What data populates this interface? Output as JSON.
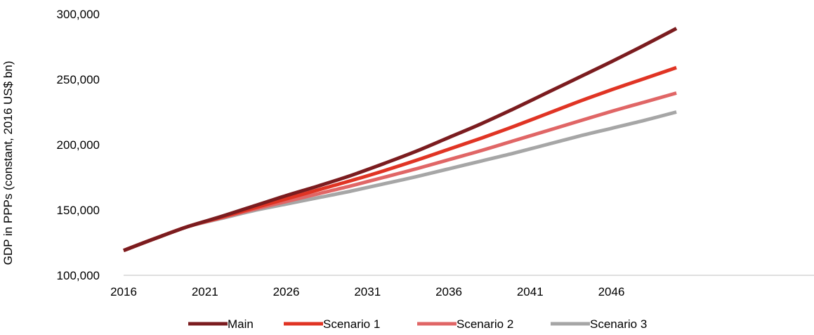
{
  "chart_data": {
    "type": "line",
    "title": "",
    "xlabel": "",
    "ylabel": "GDP in PPPs (constant, 2016 US$ bn)",
    "x_ticks": [
      "2016",
      "2021",
      "2026",
      "2031",
      "2036",
      "2041",
      "2046"
    ],
    "y_ticks": [
      "100,000",
      "150,000",
      "200,000",
      "250,000",
      "300,000"
    ],
    "xlim": [
      2016,
      2050
    ],
    "ylim": [
      100000,
      300000
    ],
    "grid": false,
    "legend_position": "bottom",
    "x": [
      2016,
      2018,
      2020,
      2022,
      2024,
      2026,
      2028,
      2030,
      2032,
      2034,
      2036,
      2038,
      2040,
      2042,
      2044,
      2046,
      2048,
      2050
    ],
    "series": [
      {
        "name": "Main",
        "color": "#7b1c1f",
        "values": [
          119000,
          128500,
          137500,
          145000,
          153000,
          161000,
          168500,
          176500,
          185500,
          195000,
          205500,
          216000,
          227500,
          239500,
          251500,
          263500,
          276000,
          289000
        ]
      },
      {
        "name": "Scenario 1",
        "color": "#e03424",
        "values": [
          119000,
          128500,
          137500,
          144500,
          151500,
          158500,
          165500,
          172500,
          180000,
          188000,
          196500,
          205000,
          214000,
          223500,
          233000,
          242000,
          250500,
          259000
        ]
      },
      {
        "name": "Scenario 2",
        "color": "#e06666",
        "values": [
          119000,
          128500,
          137500,
          144000,
          150500,
          156500,
          162500,
          168500,
          175000,
          181500,
          188500,
          195500,
          203000,
          210500,
          218000,
          225500,
          232500,
          239500
        ]
      },
      {
        "name": "Scenario 3",
        "color": "#a6a6a6",
        "values": [
          119000,
          128500,
          137500,
          143500,
          149500,
          154500,
          159500,
          164500,
          170000,
          175500,
          181500,
          187500,
          193500,
          200000,
          206500,
          212500,
          218500,
          225000
        ]
      }
    ]
  }
}
